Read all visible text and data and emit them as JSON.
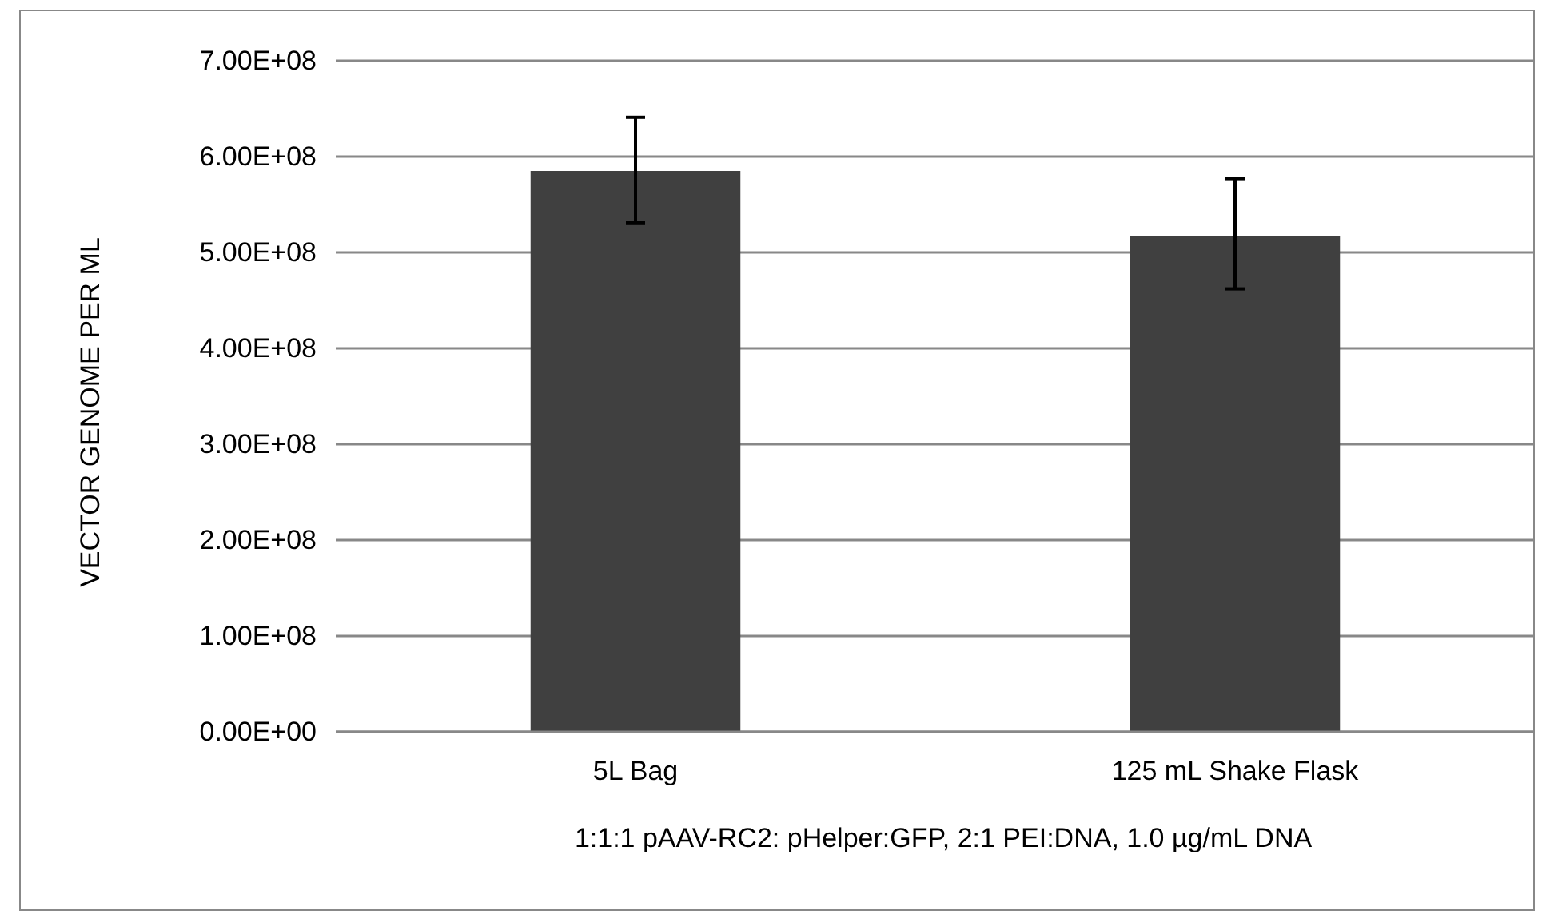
{
  "chart_data": {
    "type": "bar",
    "ylabel": "VECTOR GENOME PER ML",
    "xlabel": "1:1:1 pAAV-RC2: pHelper:GFP, 2:1 PEI:DNA, 1.0 µg/mL DNA",
    "categories": [
      "5L Bag",
      "125 mL Shake Flask"
    ],
    "values": [
      585000000,
      517000000
    ],
    "errors": [
      [
        531000000,
        641000000
      ],
      [
        462000000,
        577000000
      ]
    ],
    "color": "#404040",
    "ylim": [
      0,
      700000000
    ],
    "yticks": [
      {
        "value": 0,
        "label": "0.00E+00"
      },
      {
        "value": 100000000,
        "label": "1.00E+08"
      },
      {
        "value": 200000000,
        "label": "2.00E+08"
      },
      {
        "value": 300000000,
        "label": "3.00E+08"
      },
      {
        "value": 400000000,
        "label": "4.00E+08"
      },
      {
        "value": 500000000,
        "label": "5.00E+08"
      },
      {
        "value": 600000000,
        "label": "6.00E+08"
      },
      {
        "value": 700000000,
        "label": "7.00E+08"
      }
    ],
    "grid": "y"
  }
}
